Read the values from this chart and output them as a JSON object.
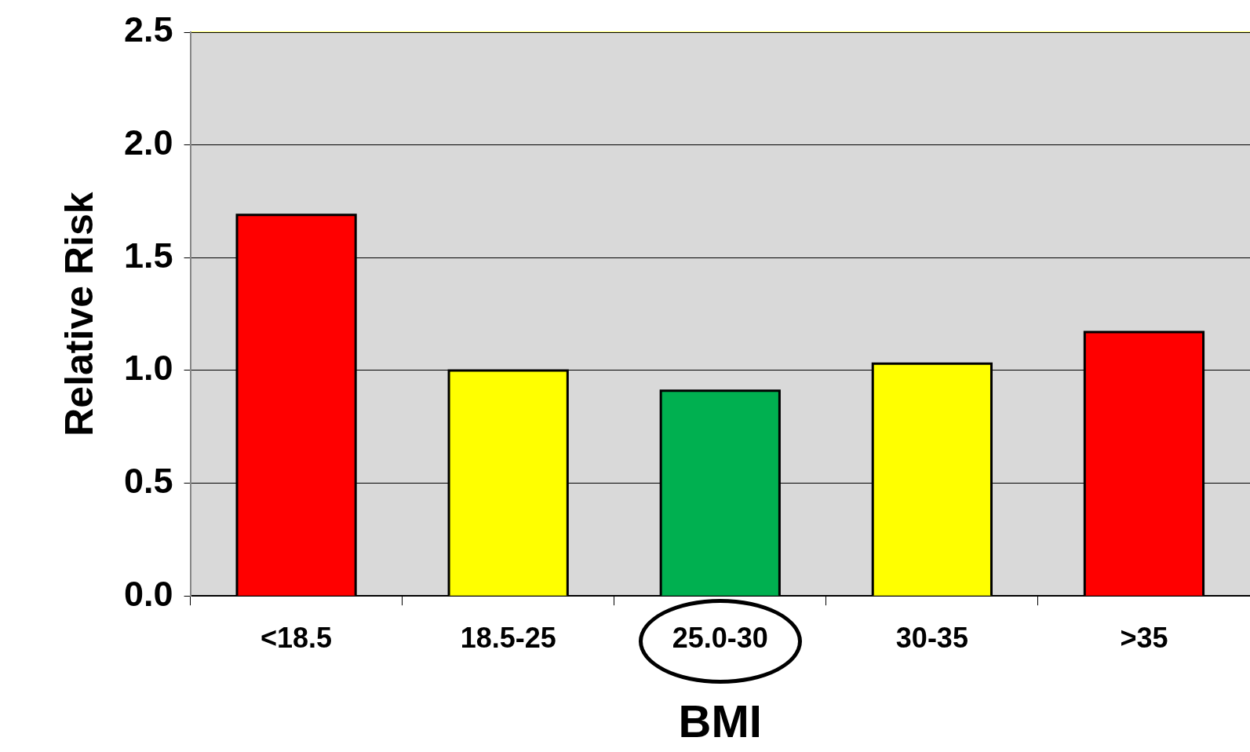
{
  "chart_data": {
    "type": "bar",
    "xlabel": "BMI",
    "ylabel": "Relative Risk",
    "categories": [
      "<18.5",
      "18.5-25",
      "25.0-30",
      "30-35",
      ">35"
    ],
    "values": [
      1.69,
      1.0,
      0.91,
      1.03,
      1.17
    ],
    "colors": [
      "#ff0000",
      "#ffff00",
      "#00b050",
      "#ffff00",
      "#ff0000"
    ],
    "ylim": [
      0,
      2.5
    ],
    "yticks": [
      {
        "value": 0,
        "label": "0.0"
      },
      {
        "value": 0.5,
        "label": "0.5"
      },
      {
        "value": 1,
        "label": "1.0"
      },
      {
        "value": 1.5,
        "label": "1.5"
      },
      {
        "value": 2,
        "label": "2.0"
      },
      {
        "value": 2.5,
        "label": "2.5"
      }
    ],
    "grid": "y",
    "legend": false
  }
}
